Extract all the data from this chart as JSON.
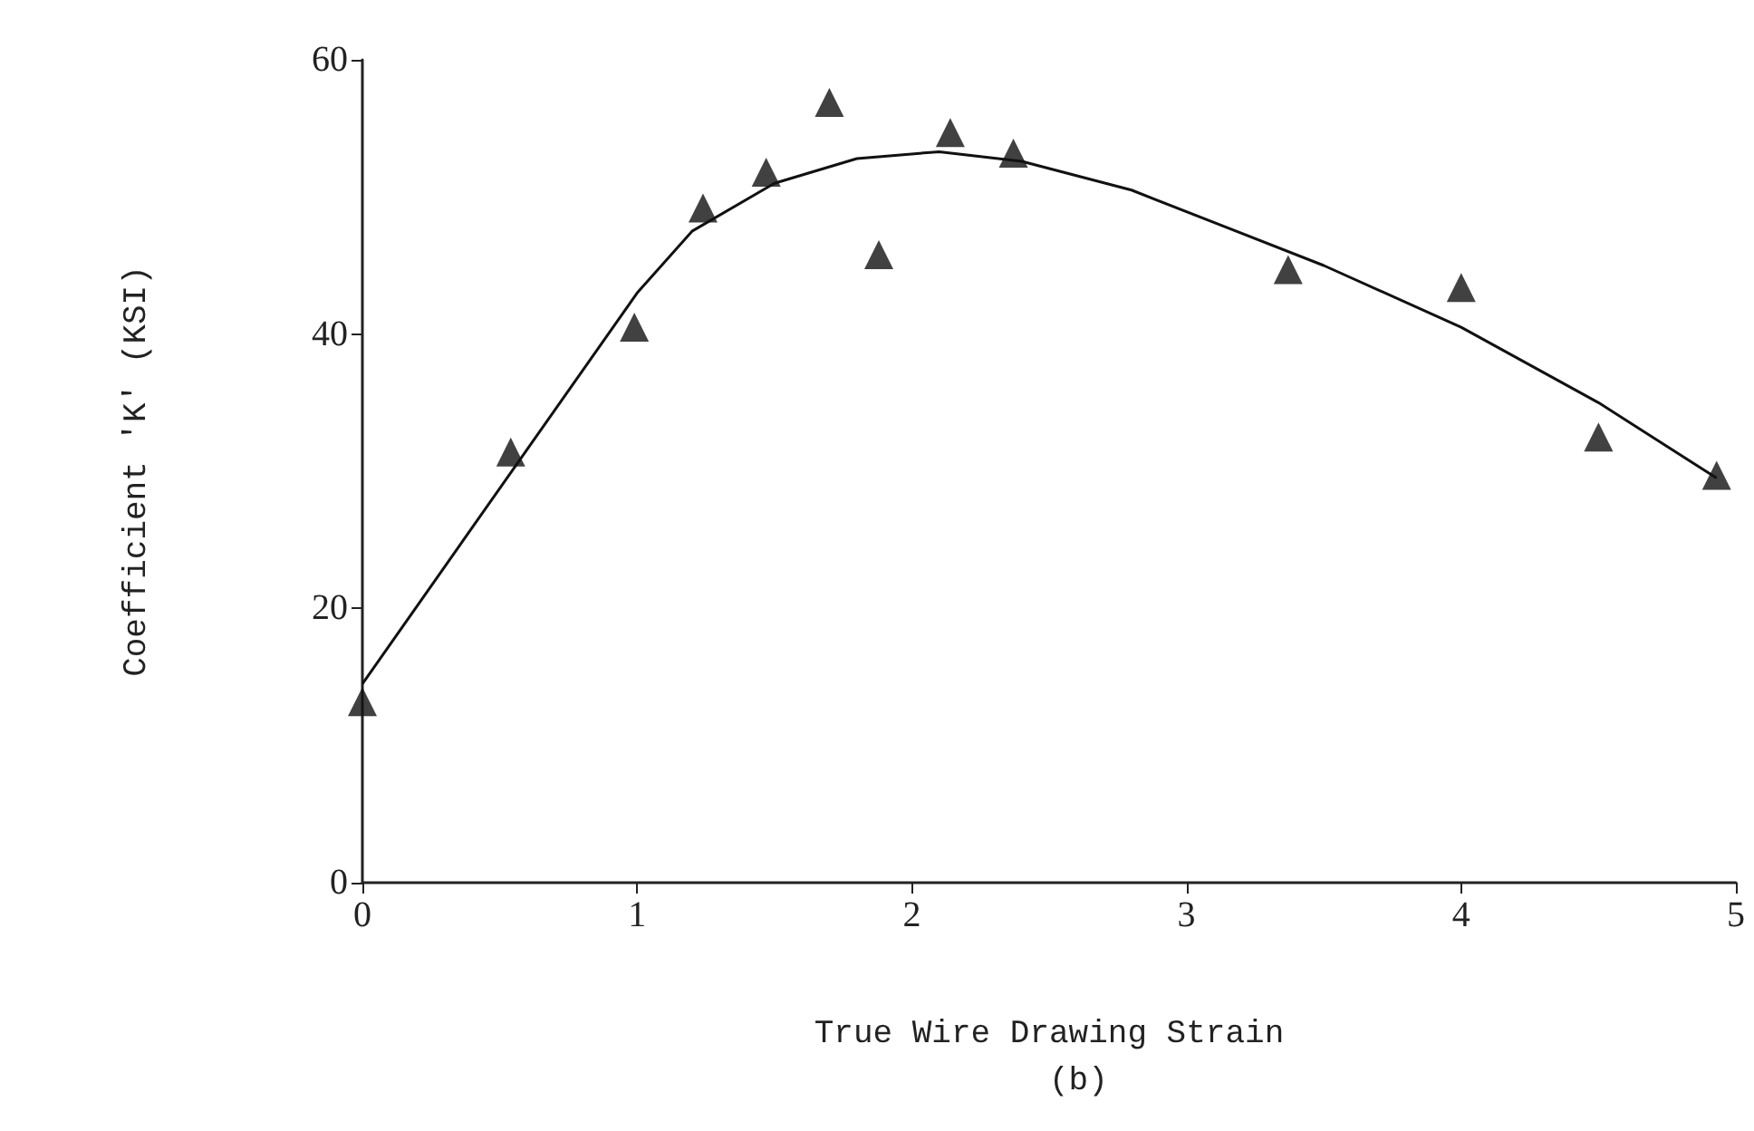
{
  "chart_data": {
    "type": "scatter",
    "xlabel": "True Wire Drawing Strain",
    "ylabel": "Coefficient 'K' (KSI)",
    "annotations": [
      "(b)"
    ],
    "xlim": [
      0,
      5
    ],
    "xticks": [
      0,
      1,
      2,
      3,
      4,
      5
    ],
    "ylim": [
      0,
      60
    ],
    "yticks": [
      0,
      20,
      40,
      60
    ],
    "grid": false,
    "series": [
      {
        "marker": "triangle",
        "color": "#111111",
        "x": [
          0,
          0.54,
          0.99,
          1.24,
          1.47,
          1.7,
          1.88,
          2.14,
          2.37,
          3.37,
          4.0,
          4.5,
          4.93
        ],
        "values": [
          13.2,
          31.4,
          40.5,
          49.2,
          51.8,
          56.9,
          45.8,
          54.7,
          53.2,
          44.7,
          43.4,
          32.5,
          29.7
        ]
      },
      {
        "type": "line",
        "marker": "none",
        "color": "#111111",
        "x": [
          0,
          1,
          1.2,
          1.5,
          1.8,
          2.1,
          2.4,
          2.8,
          3.5,
          4,
          4.5,
          4.93
        ],
        "values": [
          14.5,
          43,
          47.5,
          51,
          52.8,
          53.3,
          52.6,
          50.5,
          45,
          40.5,
          35,
          29.5
        ]
      }
    ]
  }
}
